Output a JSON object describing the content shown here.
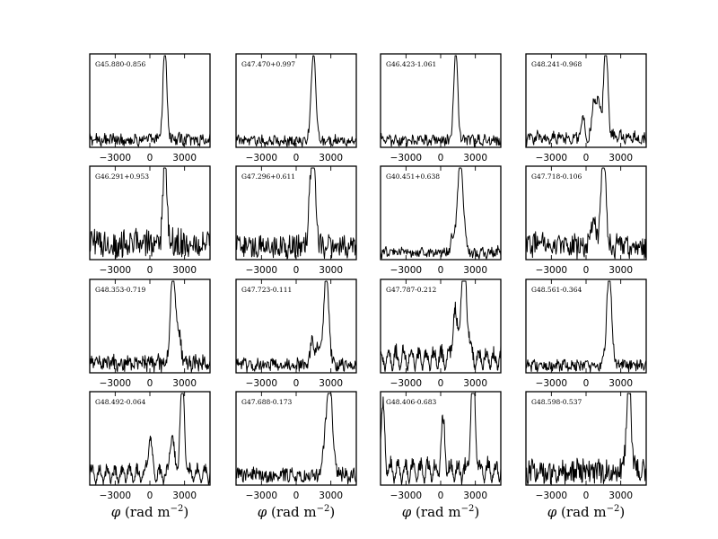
{
  "chart_data": {
    "type": "line",
    "layout": {
      "rows": 4,
      "cols": 4
    },
    "xlabel": "φ (rad m⁻²)",
    "xlabel_parts": {
      "symbol": "φ",
      "unit_open": "(rad m",
      "exponent": "−2",
      "unit_close": ")"
    },
    "xticks": [
      -3000,
      0,
      3000
    ],
    "xtick_labels": [
      "−3000",
      "0",
      "3000"
    ],
    "panels": [
      {
        "name": "G45.880-0.856",
        "col": 0,
        "row": 0,
        "xlim": [
          -5200,
          5200
        ],
        "peak_x": 1300,
        "style": "noisy",
        "noise": 0.07,
        "sidelobe": 0.06,
        "width": 170
      },
      {
        "name": "G47.470+0.997",
        "col": 1,
        "row": 0,
        "xlim": [
          -5200,
          5200
        ],
        "peak_x": 1500,
        "style": "noisy",
        "noise": 0.06,
        "sidelobe": 0.05,
        "width": 200
      },
      {
        "name": "G46.423-1.061",
        "col": 2,
        "row": 0,
        "xlim": [
          -5200,
          5200
        ],
        "peak_x": 1300,
        "style": "noisy",
        "noise": 0.07,
        "sidelobe": 0.05,
        "width": 170
      },
      {
        "name": "G48.241-0.968",
        "col": 3,
        "row": 0,
        "xlim": [
          -5200,
          5200
        ],
        "peak_x": 1700,
        "style": "noisy",
        "noise": 0.07,
        "sidelobe": 0.1,
        "width": 190,
        "secondary": [
          [
            700,
            0.45
          ],
          [
            1100,
            0.35
          ],
          [
            -300,
            0.2
          ]
        ]
      },
      {
        "name": "G46.291+0.953",
        "col": 0,
        "row": 1,
        "xlim": [
          -5200,
          5200
        ],
        "peak_x": 1300,
        "style": "noisy",
        "noise": 0.2,
        "sidelobe": 0.05,
        "width": 160
      },
      {
        "name": "G47.296+0.611",
        "col": 1,
        "row": 1,
        "xlim": [
          -5200,
          5200
        ],
        "peak_x": 1500,
        "style": "noisy",
        "noise": 0.15,
        "sidelobe": 0.05,
        "width": 190,
        "secondary": [
          [
            1200,
            0.4
          ]
        ]
      },
      {
        "name": "G40.451+0.638",
        "col": 2,
        "row": 1,
        "xlim": [
          -5200,
          5200
        ],
        "peak_x": 1700,
        "style": "noisy",
        "noise": 0.06,
        "sidelobe": 0.06,
        "width": 260,
        "secondary": [
          [
            1000,
            0.15
          ]
        ]
      },
      {
        "name": "G47.718-0.106",
        "col": 3,
        "row": 1,
        "xlim": [
          -5200,
          5200
        ],
        "peak_x": 1500,
        "style": "noisy",
        "noise": 0.14,
        "sidelobe": 0.1,
        "width": 220,
        "secondary": [
          [
            600,
            0.3
          ]
        ]
      },
      {
        "name": "G48.353-0.719",
        "col": 0,
        "row": 2,
        "xlim": [
          -5200,
          5200
        ],
        "peak_x": 2000,
        "style": "noisy",
        "noise": 0.1,
        "sidelobe": 0.06,
        "width": 220,
        "secondary": [
          [
            2500,
            0.3
          ]
        ]
      },
      {
        "name": "G47.723-0.111",
        "col": 1,
        "row": 2,
        "xlim": [
          -5200,
          5200
        ],
        "peak_x": 2600,
        "style": "noisy",
        "noise": 0.08,
        "sidelobe": 0.05,
        "width": 220,
        "secondary": [
          [
            1400,
            0.25
          ],
          [
            1900,
            0.2
          ]
        ]
      },
      {
        "name": "G47.787-0.212",
        "col": 2,
        "row": 2,
        "xlim": [
          -5200,
          5200
        ],
        "peak_x": 2000,
        "style": "smooth",
        "noise": 0.02,
        "sidelobe": 0.3,
        "width": 280,
        "secondary": [
          [
            1200,
            0.5
          ]
        ]
      },
      {
        "name": "G48.561-0.364",
        "col": 3,
        "row": 2,
        "xlim": [
          -5200,
          5200
        ],
        "peak_x": 2000,
        "style": "noisy",
        "noise": 0.07,
        "sidelobe": 0.05,
        "width": 220
      },
      {
        "name": "G48.492-0.064",
        "col": 0,
        "row": 3,
        "xlim": [
          -5200,
          5200
        ],
        "peak_x": 2800,
        "style": "smooth",
        "noise": 0.02,
        "sidelobe": 0.22,
        "width": 190,
        "secondary": [
          [
            0,
            0.4
          ],
          [
            1900,
            0.45
          ]
        ]
      },
      {
        "name": "G47.688-0.173",
        "col": 1,
        "row": 3,
        "xlim": [
          -5200,
          5200
        ],
        "peak_x": 2900,
        "style": "noisy",
        "noise": 0.1,
        "sidelobe": 0.06,
        "width": 240,
        "secondary": [
          [
            2500,
            0.3
          ]
        ]
      },
      {
        "name": "G48.406-0.683",
        "col": 2,
        "row": 3,
        "xlim": [
          -5200,
          5200
        ],
        "peak_x": 2800,
        "style": "smooth",
        "noise": 0.02,
        "sidelobe": 0.3,
        "width": 200,
        "secondary": [
          [
            -5000,
            0.65
          ],
          [
            200,
            0.5
          ]
        ]
      },
      {
        "name": "G48.598-0.537",
        "col": 3,
        "row": 3,
        "xlim": [
          -5200,
          5200
        ],
        "peak_x": 3700,
        "style": "noisy",
        "noise": 0.16,
        "sidelobe": 0.05,
        "width": 200
      }
    ]
  }
}
